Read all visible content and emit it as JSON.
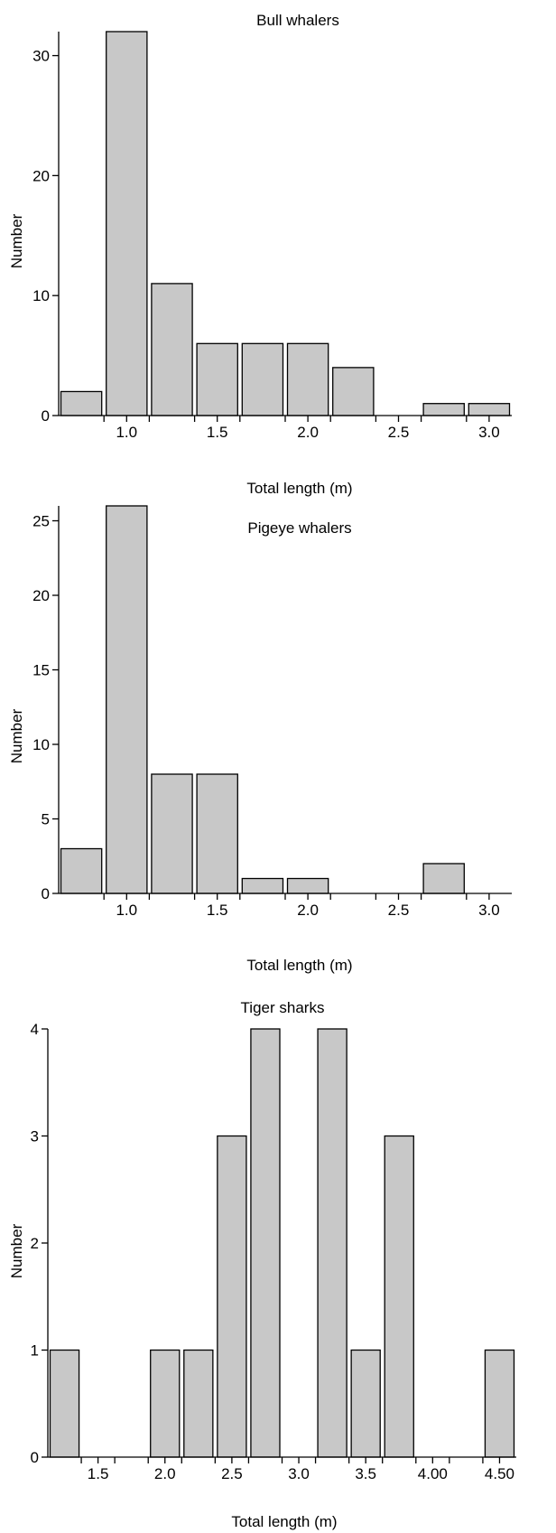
{
  "chart_data": [
    {
      "type": "bar",
      "title": "Bull whalers",
      "xlabel": "Total length (m)",
      "ylabel": "Number",
      "bin_width": 0.25,
      "xlim": [
        0.625,
        3.125
      ],
      "ylim": [
        0,
        32
      ],
      "x_ticks": [
        {
          "value": 0.875,
          "label": ""
        },
        {
          "value": 1.0,
          "label": "1.0"
        },
        {
          "value": 1.125,
          "label": ""
        },
        {
          "value": 1.375,
          "label": ""
        },
        {
          "value": 1.5,
          "label": "1.5"
        },
        {
          "value": 1.625,
          "label": ""
        },
        {
          "value": 1.875,
          "label": ""
        },
        {
          "value": 2.0,
          "label": "2.0"
        },
        {
          "value": 2.125,
          "label": ""
        },
        {
          "value": 2.375,
          "label": ""
        },
        {
          "value": 2.5,
          "label": "2.5"
        },
        {
          "value": 2.625,
          "label": ""
        },
        {
          "value": 2.875,
          "label": ""
        },
        {
          "value": 3.0,
          "label": "3.0"
        }
      ],
      "y_ticks": [
        {
          "value": 0,
          "label": "0"
        },
        {
          "value": 10,
          "label": "10"
        },
        {
          "value": 20,
          "label": "20"
        },
        {
          "value": 30,
          "label": "30"
        }
      ],
      "bins": [
        {
          "x": 0.75,
          "value": 2
        },
        {
          "x": 1.0,
          "value": 32
        },
        {
          "x": 1.25,
          "value": 11
        },
        {
          "x": 1.5,
          "value": 6
        },
        {
          "x": 1.75,
          "value": 6
        },
        {
          "x": 2.0,
          "value": 6
        },
        {
          "x": 2.25,
          "value": 4
        },
        {
          "x": 2.75,
          "value": 1
        },
        {
          "x": 3.0,
          "value": 1
        }
      ]
    },
    {
      "type": "bar",
      "title": "Pigeye whalers",
      "xlabel": "Total length (m)",
      "ylabel": "Number",
      "bin_width": 0.25,
      "xlim": [
        0.625,
        3.125
      ],
      "ylim": [
        0,
        26
      ],
      "x_ticks": [
        {
          "value": 0.875,
          "label": ""
        },
        {
          "value": 1.0,
          "label": "1.0"
        },
        {
          "value": 1.125,
          "label": ""
        },
        {
          "value": 1.375,
          "label": ""
        },
        {
          "value": 1.5,
          "label": "1.5"
        },
        {
          "value": 1.625,
          "label": ""
        },
        {
          "value": 1.875,
          "label": ""
        },
        {
          "value": 2.0,
          "label": "2.0"
        },
        {
          "value": 2.125,
          "label": ""
        },
        {
          "value": 2.375,
          "label": ""
        },
        {
          "value": 2.5,
          "label": "2.5"
        },
        {
          "value": 2.625,
          "label": ""
        },
        {
          "value": 2.875,
          "label": ""
        },
        {
          "value": 3.0,
          "label": "3.0"
        }
      ],
      "y_ticks": [
        {
          "value": 0,
          "label": "0"
        },
        {
          "value": 5,
          "label": "5"
        },
        {
          "value": 10,
          "label": "10"
        },
        {
          "value": 15,
          "label": "15"
        },
        {
          "value": 20,
          "label": "20"
        },
        {
          "value": 25,
          "label": "25"
        }
      ],
      "bins": [
        {
          "x": 0.75,
          "value": 3
        },
        {
          "x": 1.0,
          "value": 26
        },
        {
          "x": 1.25,
          "value": 8
        },
        {
          "x": 1.5,
          "value": 8
        },
        {
          "x": 1.75,
          "value": 1
        },
        {
          "x": 2.0,
          "value": 1
        },
        {
          "x": 2.75,
          "value": 2
        }
      ]
    },
    {
      "type": "bar",
      "title": "Tiger sharks",
      "xlabel": "Total length (m)",
      "ylabel": "Number",
      "bin_width": 0.25,
      "xlim": [
        1.125,
        4.625
      ],
      "ylim": [
        0,
        4
      ],
      "x_ticks": [
        {
          "value": 1.375,
          "label": ""
        },
        {
          "value": 1.5,
          "label": "1.5"
        },
        {
          "value": 1.625,
          "label": ""
        },
        {
          "value": 1.875,
          "label": ""
        },
        {
          "value": 2.0,
          "label": "2.0"
        },
        {
          "value": 2.125,
          "label": ""
        },
        {
          "value": 2.375,
          "label": ""
        },
        {
          "value": 2.5,
          "label": "2.5"
        },
        {
          "value": 2.625,
          "label": ""
        },
        {
          "value": 2.875,
          "label": ""
        },
        {
          "value": 3.0,
          "label": "3.0"
        },
        {
          "value": 3.125,
          "label": ""
        },
        {
          "value": 3.375,
          "label": ""
        },
        {
          "value": 3.5,
          "label": "3.5"
        },
        {
          "value": 3.625,
          "label": ""
        },
        {
          "value": 3.875,
          "label": ""
        },
        {
          "value": 4.0,
          "label": "4.00"
        },
        {
          "value": 4.125,
          "label": ""
        },
        {
          "value": 4.375,
          "label": ""
        },
        {
          "value": 4.5,
          "label": "4.50"
        }
      ],
      "y_ticks": [
        {
          "value": 0,
          "label": "0"
        },
        {
          "value": 1,
          "label": "1"
        },
        {
          "value": 2,
          "label": "2"
        },
        {
          "value": 3,
          "label": "3"
        },
        {
          "value": 4,
          "label": "4"
        }
      ],
      "bins": [
        {
          "x": 1.25,
          "value": 1
        },
        {
          "x": 2.0,
          "value": 1
        },
        {
          "x": 2.25,
          "value": 1
        },
        {
          "x": 2.5,
          "value": 3
        },
        {
          "x": 2.75,
          "value": 4
        },
        {
          "x": 3.25,
          "value": 4
        },
        {
          "x": 3.5,
          "value": 1
        },
        {
          "x": 3.75,
          "value": 3
        },
        {
          "x": 4.5,
          "value": 1
        }
      ]
    }
  ]
}
